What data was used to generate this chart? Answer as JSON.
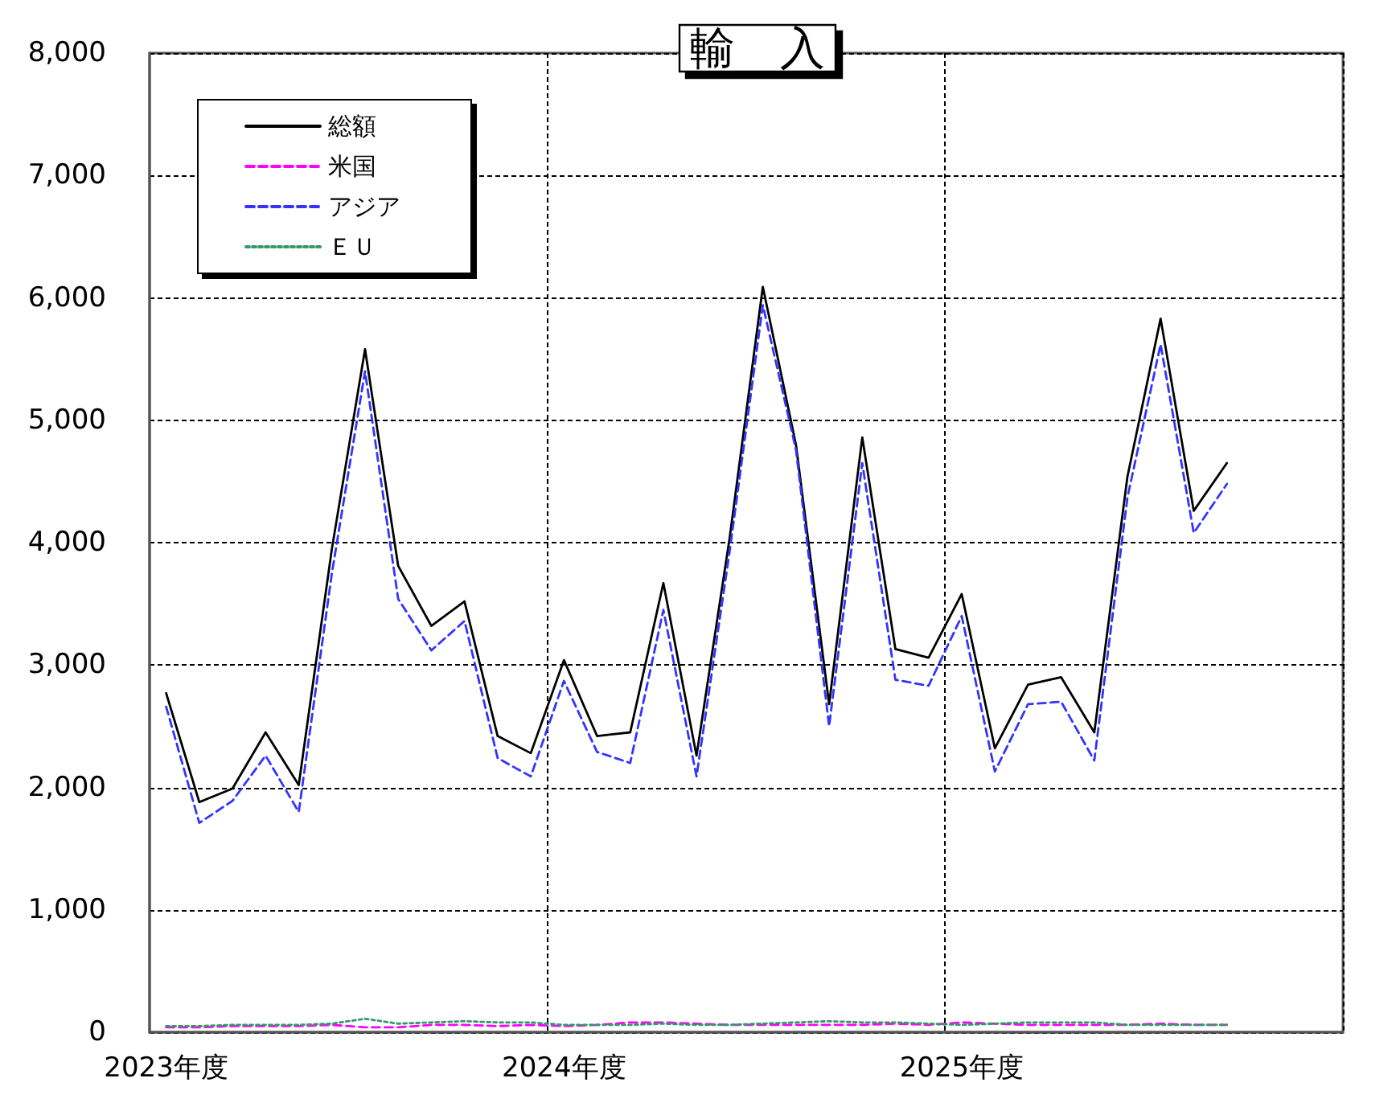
{
  "chart_data": {
    "type": "line",
    "title": "輸　入",
    "categories": [
      "2023年度",
      null,
      null,
      null,
      null,
      null,
      null,
      null,
      null,
      null,
      null,
      null,
      "2024年度",
      null,
      null,
      null,
      null,
      null,
      null,
      null,
      null,
      null,
      null,
      null,
      "2025年度",
      null,
      null,
      null,
      null,
      null,
      null,
      null,
      null,
      null,
      null,
      null
    ],
    "series": [
      {
        "name": "総額",
        "color": "#000000",
        "line_style": "solid",
        "values": [
          2770,
          1880,
          1990,
          2450,
          2020,
          3950,
          5580,
          3810,
          3320,
          3520,
          2420,
          2280,
          3040,
          2420,
          2450,
          3670,
          2260,
          4040,
          6090,
          4800,
          2680,
          4860,
          3130,
          3060,
          3580,
          2320,
          2840,
          2900,
          2450,
          4540,
          5830,
          4260,
          4650,
          null,
          null,
          null
        ]
      },
      {
        "name": "米国",
        "color": "#ff00ff",
        "line_style": "dashed",
        "values": [
          40,
          40,
          50,
          50,
          50,
          60,
          40,
          40,
          60,
          60,
          50,
          60,
          50,
          60,
          80,
          80,
          70,
          60,
          60,
          60,
          60,
          60,
          70,
          60,
          80,
          70,
          60,
          60,
          60,
          60,
          70,
          60,
          60,
          null,
          null,
          null
        ]
      },
      {
        "name": "アジア",
        "color": "#3333ff",
        "line_style": "dashed",
        "values": [
          2660,
          1710,
          1890,
          2260,
          1800,
          3750,
          5400,
          3540,
          3120,
          3360,
          2240,
          2090,
          2870,
          2290,
          2200,
          3450,
          2090,
          3930,
          5940,
          4760,
          2500,
          4650,
          2880,
          2830,
          3400,
          2130,
          2680,
          2700,
          2220,
          4370,
          5620,
          4080,
          4480,
          null,
          null,
          null
        ]
      },
      {
        "name": "ＥＵ",
        "color": "#339966",
        "line_style": "dotted",
        "values": [
          50,
          50,
          60,
          60,
          60,
          70,
          110,
          70,
          80,
          90,
          80,
          80,
          60,
          60,
          60,
          70,
          60,
          60,
          70,
          80,
          90,
          80,
          80,
          70,
          60,
          70,
          80,
          80,
          80,
          60,
          60,
          60,
          60,
          null,
          null,
          null
        ]
      }
    ],
    "ylim": [
      0,
      8000
    ],
    "yticks": [
      {
        "value": 0,
        "label": "0"
      },
      {
        "value": 1000,
        "label": "1,000"
      },
      {
        "value": 2000,
        "label": "2,000"
      },
      {
        "value": 3000,
        "label": "3,000"
      },
      {
        "value": 4000,
        "label": "4,000"
      },
      {
        "value": 5000,
        "label": "5,000"
      },
      {
        "value": 6000,
        "label": "6,000"
      },
      {
        "value": 7000,
        "label": "7,000"
      },
      {
        "value": 8000,
        "label": "8,000"
      }
    ],
    "grid": true,
    "legend": "top left",
    "marker": "none"
  }
}
